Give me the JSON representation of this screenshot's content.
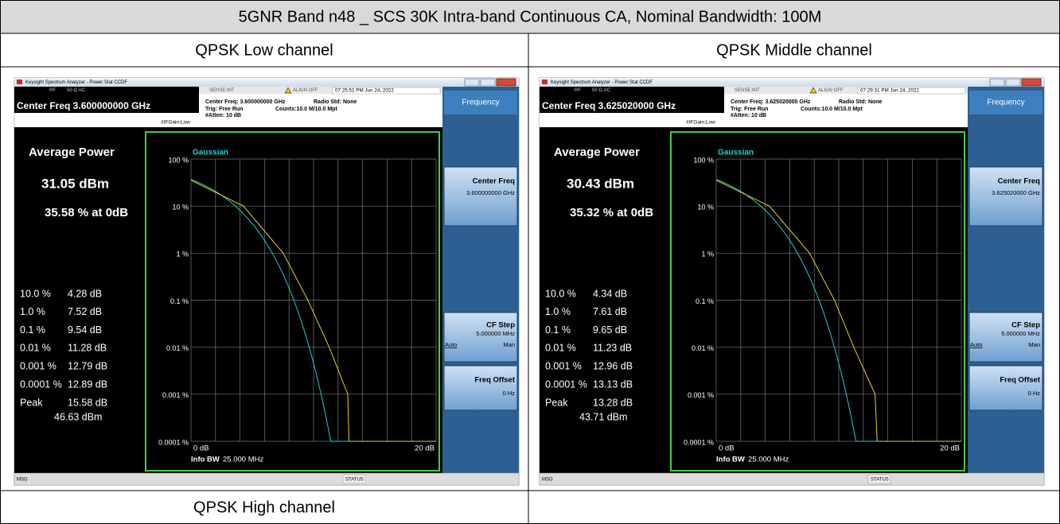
{
  "header": {
    "title": "5GNR Band n48 _ SCS 30K Intra-band Continuous CA, Nominal Bandwidth: 100M"
  },
  "table": {
    "row_headers": [
      "QPSK Low channel",
      "QPSK Middle channel"
    ],
    "last_row": "QPSK High channel"
  },
  "screens": [
    {
      "window_title": "Keysight Spectrum Analyzer - Power Stat CCDF",
      "rf": "RF",
      "coupling": "50 Ω  AC",
      "sense": "SENSE:INT",
      "align": "ALIGN OFF",
      "time": "07:25:51 PM Jun 24, 2022",
      "center_display": "Center Freq 3.600000000 GHz",
      "center_setting": "Center Freq: 3.600000000 GHz",
      "trig": "Trig: Free Run",
      "atten": "#Atten: 10 dB",
      "radio_std": "Radio Std: None",
      "counts": "Counts:10.0 M/10.0 Mpt",
      "ifgain": "#IFGain:Low",
      "menu_title": "Frequency",
      "avg_label": "Average Power",
      "avg_value": "31.05 dBm",
      "at_0db": "35.58 % at 0dB",
      "stats": [
        [
          "10.0 %",
          "4.28 dB"
        ],
        [
          "1.0 %",
          "7.52 dB"
        ],
        [
          "0.1 %",
          "9.54 dB"
        ],
        [
          "0.01 %",
          "11.28 dB"
        ],
        [
          "0.001 %",
          "12.79 dB"
        ],
        [
          "0.0001 %",
          "12.89 dB"
        ]
      ],
      "peak_label": "Peak",
      "peak_db": "15.58 dB",
      "peak_dbm": "46.63 dBm",
      "trace_label": "Gaussian",
      "y_labels": [
        "100 %",
        "10 %",
        "1 %",
        "0.1 %",
        "0.01 %",
        "0.001 %",
        "0.0001 %"
      ],
      "x_start": "0 dB",
      "x_end": "20 dB",
      "info_bw_label": "Info BW",
      "info_bw": "25.000 MHz",
      "key1": "Center Freq",
      "key1_value": "3.600000000 GHz",
      "key2": "CF Step",
      "key2_value": "5.000000 MHz",
      "key2_auto": "Auto",
      "key2_man": "Man",
      "key3": "Freq Offset",
      "key3_value": "0 Hz",
      "msg": "MSG",
      "status": "STATUS"
    },
    {
      "window_title": "Keysight Spectrum Analyzer - Power Stat CCDF",
      "rf": "RF",
      "coupling": "50 Ω  AC",
      "sense": "SENSE:INT",
      "align": "ALIGN OFF",
      "time": "07:29:31 PM Jun 24, 2022",
      "center_display": "Center Freq 3.625020000 GHz",
      "center_setting": "Center Freq: 3.625020000 GHz",
      "trig": "Trig: Free Run",
      "atten": "#Atten: 10 dB",
      "radio_std": "Radio Std: None",
      "counts": "Counts:10.0 M/10.0 Mpt",
      "ifgain": "#IFGain:Low",
      "menu_title": "Frequency",
      "avg_label": "Average Power",
      "avg_value": "30.43 dBm",
      "at_0db": "35.32 % at 0dB",
      "stats": [
        [
          "10.0 %",
          "4.34 dB"
        ],
        [
          "1.0 %",
          "7.61 dB"
        ],
        [
          "0.1 %",
          "9.65 dB"
        ],
        [
          "0.01 %",
          "11.23 dB"
        ],
        [
          "0.001 %",
          "12.96 dB"
        ],
        [
          "0.0001 %",
          "13.13 dB"
        ]
      ],
      "peak_label": "Peak",
      "peak_db": "13.28 dB",
      "peak_dbm": "43.71 dBm",
      "trace_label": "Gaussian",
      "y_labels": [
        "100 %",
        "10 %",
        "1 %",
        "0.1 %",
        "0.01 %",
        "0.001 %",
        "0.0001 %"
      ],
      "x_start": "0 dB",
      "x_end": "20 dB",
      "info_bw_label": "Info BW",
      "info_bw": "25.000 MHz",
      "key1": "Center Freq",
      "key1_value": "3.625020000 GHz",
      "key2": "CF Step",
      "key2_value": "5.000000 MHz",
      "key2_auto": "Auto",
      "key2_man": "Man",
      "key3": "Freq Offset",
      "key3_value": "0 Hz",
      "msg": "MSG",
      "status": "STATUS"
    }
  ]
}
